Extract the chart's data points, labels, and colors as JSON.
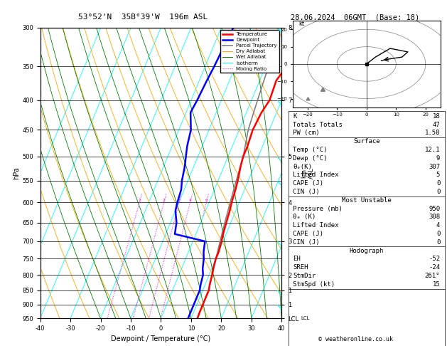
{
  "title_left": "53°52'N  35B°39'W  196m ASL",
  "title_right": "28.06.2024  06GMT  (Base: 18)",
  "xlabel": "Dewpoint / Temperature (°C)",
  "ylabel_left": "hPa",
  "pressure_levels": [
    300,
    350,
    400,
    450,
    500,
    550,
    600,
    650,
    700,
    750,
    800,
    850,
    900,
    950
  ],
  "temp_x": [
    -40,
    -30,
    -20,
    -10,
    0,
    10,
    20,
    30,
    40
  ],
  "temperature_profile": {
    "pressures": [
      300,
      320,
      350,
      370,
      400,
      420,
      450,
      480,
      500,
      520,
      550,
      570,
      600,
      620,
      650,
      680,
      700,
      730,
      750,
      780,
      800,
      830,
      850,
      880,
      900,
      930,
      950
    ],
    "temps": [
      5,
      6,
      7,
      5.5,
      6,
      5,
      4.5,
      5,
      5,
      5.5,
      6.5,
      7,
      7.5,
      8,
      8.5,
      9,
      9.5,
      10,
      10,
      10.5,
      11,
      11.5,
      12,
      12,
      12,
      12,
      12.1
    ]
  },
  "dewpoint_profile": {
    "pressures": [
      300,
      320,
      350,
      370,
      400,
      420,
      450,
      480,
      500,
      520,
      550,
      570,
      600,
      620,
      650,
      680,
      700,
      730,
      750,
      780,
      800,
      830,
      850,
      880,
      900,
      930,
      950
    ],
    "temps": [
      -16,
      -16.5,
      -17,
      -17.5,
      -18,
      -18.5,
      -16,
      -15,
      -14,
      -13,
      -12,
      -11,
      -10.5,
      -10,
      -8,
      -7,
      4,
      5,
      6,
      7,
      8,
      8.5,
      9,
      9,
      9,
      9,
      9
    ]
  },
  "parcel_profile": {
    "pressures": [
      350,
      400,
      450,
      500,
      550,
      600,
      650,
      700,
      750,
      800,
      850,
      900,
      950
    ],
    "temps": [
      1,
      2,
      3,
      5,
      6,
      7,
      8,
      9,
      10,
      11,
      12,
      12,
      12.1
    ]
  },
  "legend_items": [
    {
      "label": "Temperature",
      "color": "red",
      "lw": 1.8,
      "ls": "-"
    },
    {
      "label": "Dewpoint",
      "color": "blue",
      "lw": 1.8,
      "ls": "-"
    },
    {
      "label": "Parcel Trajectory",
      "color": "gray",
      "lw": 1.2,
      "ls": "-"
    },
    {
      "label": "Dry Adiabat",
      "color": "orange",
      "lw": 0.7,
      "ls": "-"
    },
    {
      "label": "Wet Adiabat",
      "color": "green",
      "lw": 0.7,
      "ls": "-"
    },
    {
      "label": "Isotherm",
      "color": "cyan",
      "lw": 0.7,
      "ls": "-"
    },
    {
      "label": "Mixing Ratio",
      "color": "magenta",
      "lw": 0.7,
      "ls": ":"
    }
  ],
  "mixing_ratio_values": [
    1,
    2,
    3,
    4,
    6,
    8,
    10,
    15,
    20,
    25
  ],
  "km_ticks": {
    "pressures": [
      950,
      900,
      850,
      800,
      700,
      600,
      500,
      400,
      300
    ],
    "km": [
      "LCL",
      "1",
      "1",
      "2",
      "3",
      "4",
      "5",
      "7",
      "8"
    ]
  },
  "wind_barb_pressures": [
    300,
    400,
    500,
    550,
    700,
    850,
    900,
    950
  ],
  "info_table": {
    "K": 18,
    "Totals Totals": 47,
    "PW (cm)": 1.58,
    "Surface": {
      "Temp (C)": 12.1,
      "Dewp (C)": 9,
      "theta_e (K)": 307,
      "Lifted Index": 5,
      "CAPE (J)": 0,
      "CIN (J)": 0
    },
    "Most Unstable": {
      "Pressure (mb)": 950,
      "theta_e (K)": 308,
      "Lifted Index": 4,
      "CAPE (J)": 0,
      "CIN (J)": 0
    },
    "Hodograph": {
      "EH": -52,
      "SREH": -24,
      "StmDir": "261°",
      "StmSpd (kt)": 15
    }
  },
  "copyright": "© weatheronline.co.uk"
}
